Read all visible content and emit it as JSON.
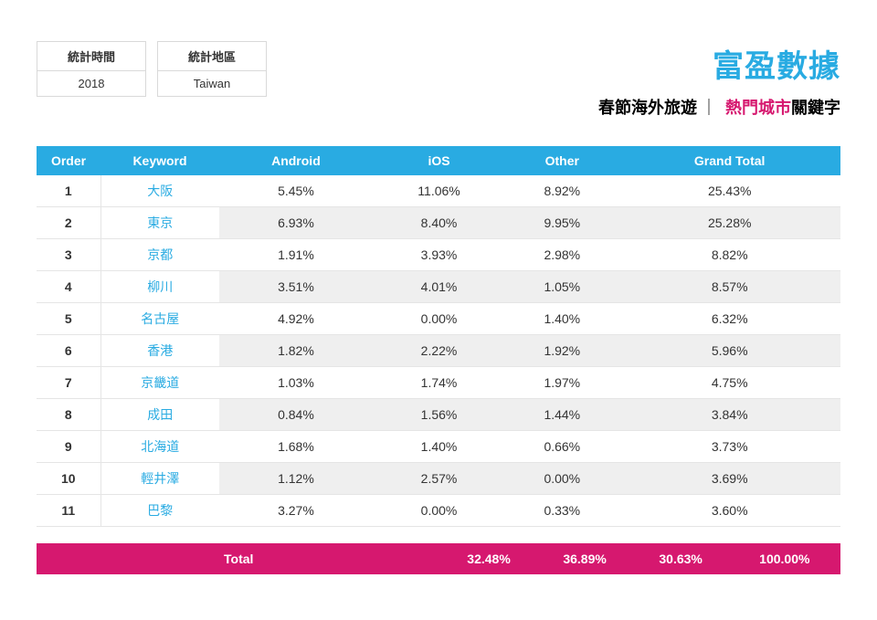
{
  "colors": {
    "brand": "#29abe2",
    "accent": "#d6186f",
    "keyword": "#29abe2",
    "header_bg": "#29abe2",
    "total_bg": "#d6186f"
  },
  "meta": {
    "time_label": "統計時間",
    "time_value": "2018",
    "region_label": "統計地區",
    "region_value": "Taiwan"
  },
  "brand": "富盈數據",
  "subtitle": {
    "prefix": "春節海外旅遊",
    "separator": "｜",
    "highlight": "熱門城市",
    "suffix": "關鍵字"
  },
  "table": {
    "columns": [
      "Order",
      "Keyword",
      "Android",
      "iOS",
      "Other",
      "Grand Total"
    ],
    "rows": [
      {
        "order": "1",
        "keyword": "大阪",
        "android": "5.45%",
        "ios": "11.06%",
        "other": "8.92%",
        "total": "25.43%"
      },
      {
        "order": "2",
        "keyword": "東京",
        "android": "6.93%",
        "ios": "8.40%",
        "other": "9.95%",
        "total": "25.28%"
      },
      {
        "order": "3",
        "keyword": "京都",
        "android": "1.91%",
        "ios": "3.93%",
        "other": "2.98%",
        "total": "8.82%"
      },
      {
        "order": "4",
        "keyword": "柳川",
        "android": "3.51%",
        "ios": "4.01%",
        "other": "1.05%",
        "total": "8.57%"
      },
      {
        "order": "5",
        "keyword": "名古屋",
        "android": "4.92%",
        "ios": "0.00%",
        "other": "1.40%",
        "total": "6.32%"
      },
      {
        "order": "6",
        "keyword": "香港",
        "android": "1.82%",
        "ios": "2.22%",
        "other": "1.92%",
        "total": "5.96%"
      },
      {
        "order": "7",
        "keyword": "京畿道",
        "android": "1.03%",
        "ios": "1.74%",
        "other": "1.97%",
        "total": "4.75%"
      },
      {
        "order": "8",
        "keyword": "成田",
        "android": "0.84%",
        "ios": "1.56%",
        "other": "1.44%",
        "total": "3.84%"
      },
      {
        "order": "9",
        "keyword": "北海道",
        "android": "1.68%",
        "ios": "1.40%",
        "other": "0.66%",
        "total": "3.73%"
      },
      {
        "order": "10",
        "keyword": "輕井澤",
        "android": "1.12%",
        "ios": "2.57%",
        "other": "0.00%",
        "total": "3.69%"
      },
      {
        "order": "11",
        "keyword": "巴黎",
        "android": "3.27%",
        "ios": "0.00%",
        "other": "0.33%",
        "total": "3.60%"
      }
    ],
    "totals": {
      "label": "Total",
      "android": "32.48%",
      "ios": "36.89%",
      "other": "30.63%",
      "total": "100.00%"
    }
  }
}
